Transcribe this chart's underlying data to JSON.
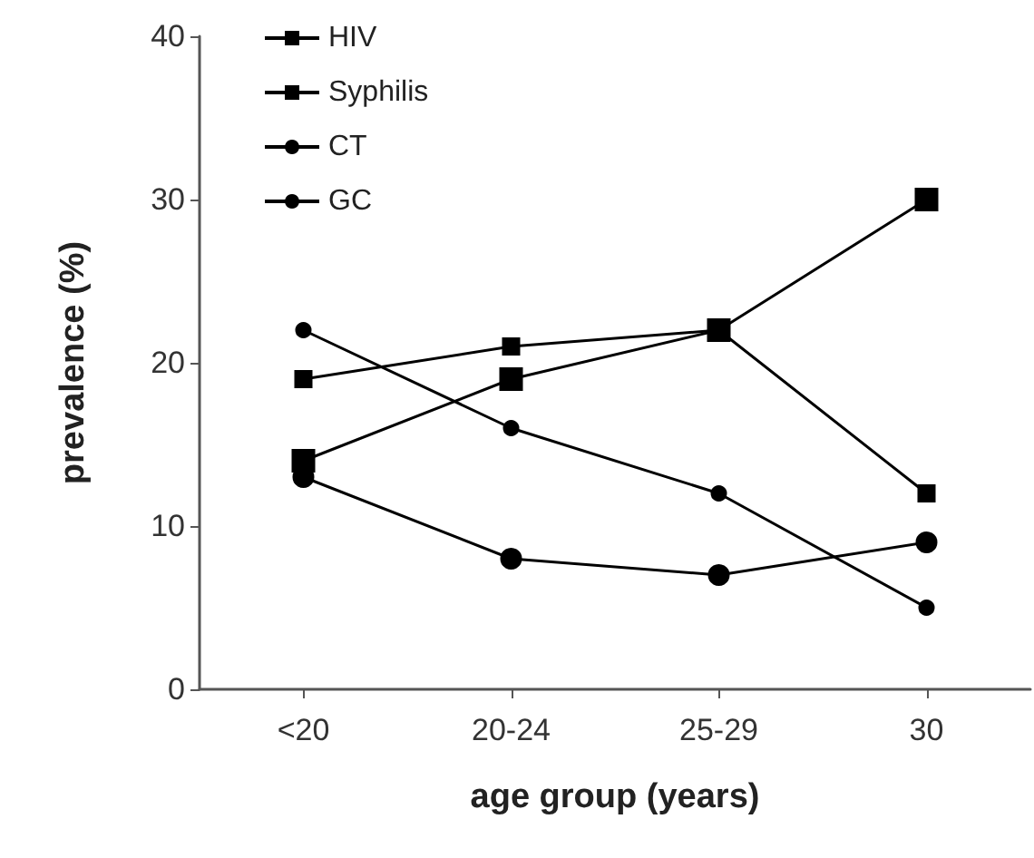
{
  "chart_data": {
    "type": "line",
    "xlabel": "age group (years)",
    "ylabel": "prevalence (%)",
    "categories": [
      "<20",
      "20-24",
      "25-29",
      "30"
    ],
    "ylim": [
      0,
      40
    ],
    "yticks": [
      0,
      10,
      20,
      30,
      40
    ],
    "grid": false,
    "legend": "top left",
    "line_style": "solid",
    "series": [
      {
        "name": "HIV",
        "color": "#000000",
        "marker": "square",
        "values": [
          19,
          21,
          22,
          12
        ]
      },
      {
        "name": "Syphilis",
        "color": "#000000",
        "marker": "square",
        "values": [
          14,
          19,
          22,
          30
        ]
      },
      {
        "name": "CT",
        "color": "#000000",
        "marker": "circle",
        "values": [
          22,
          16,
          12,
          5
        ]
      },
      {
        "name": "GC",
        "color": "#000000",
        "marker": "circle",
        "values": [
          13,
          8,
          7,
          9
        ]
      }
    ]
  }
}
